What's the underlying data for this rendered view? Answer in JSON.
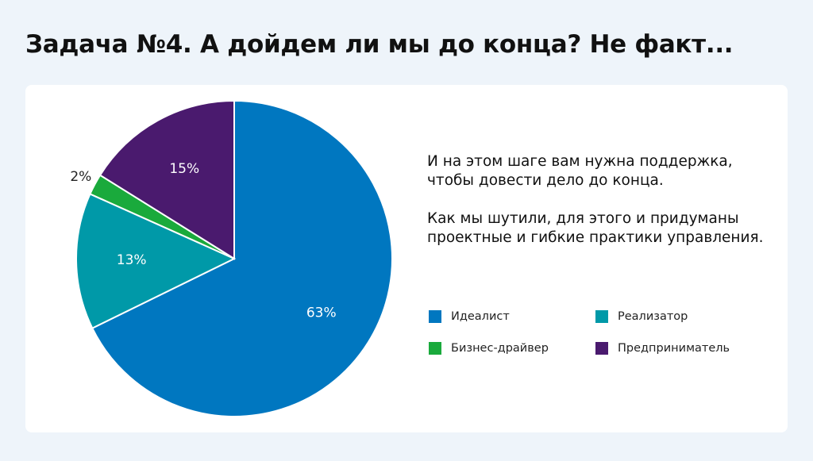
{
  "title": "Задача №4. А дойдем ли мы до конца? Не факт...",
  "paragraphs": [
    "И на этом шаге вам нужна поддержка, чтобы довести дело до конца.",
    "Как мы шутили, для этого и придуманы проектные и гибкие практики управления."
  ],
  "chart_data": {
    "type": "pie",
    "categories": [
      "Идеалист",
      "Реализатор",
      "Бизнес-драйвер",
      "Предприниматель"
    ],
    "values": [
      63,
      13,
      2,
      15
    ],
    "value_labels": [
      "63%",
      "13%",
      "2%",
      "15%"
    ],
    "colors": [
      "#0077c0",
      "#0099a8",
      "#1aaa3c",
      "#4a1a6e"
    ]
  }
}
